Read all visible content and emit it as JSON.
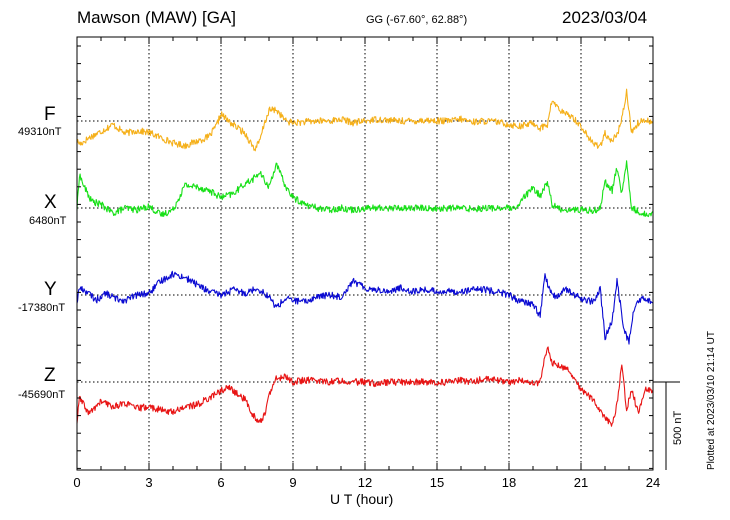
{
  "header": {
    "station": "Mawson (MAW)  [GA]",
    "coord": "GG (-67.60°,  62.88°)",
    "date": "2023/03/04"
  },
  "footer": {
    "plotted": "Plotted at 2023/03/10 21:14 UT",
    "scale_label": "500 nT"
  },
  "chart_data": {
    "type": "line",
    "xlabel": "U T (hour)",
    "xlim": [
      0,
      24
    ],
    "xticks": [
      "0",
      "3",
      "6",
      "9",
      "12",
      "15",
      "18",
      "21",
      "24"
    ],
    "scale_bar_nT": 500,
    "grid": true,
    "series": [
      {
        "name": "F",
        "baseline_label": "49310nT",
        "color": "#f5b01a",
        "points": [
          [
            0,
            -115
          ],
          [
            0.15,
            -130
          ],
          [
            0.5,
            -95
          ],
          [
            1,
            -60
          ],
          [
            1.5,
            -20
          ],
          [
            2,
            -70
          ],
          [
            2.5,
            -55
          ],
          [
            3,
            -65
          ],
          [
            3.5,
            -95
          ],
          [
            4,
            -125
          ],
          [
            4.5,
            -140
          ],
          [
            5,
            -115
          ],
          [
            5.5,
            -90
          ],
          [
            5.8,
            -30
          ],
          [
            6,
            40
          ],
          [
            6.3,
            0
          ],
          [
            6.6,
            -30
          ],
          [
            7,
            -70
          ],
          [
            7.4,
            -160
          ],
          [
            7.6,
            -120
          ],
          [
            7.8,
            -20
          ],
          [
            8,
            60
          ],
          [
            8.3,
            65
          ],
          [
            8.7,
            0
          ],
          [
            9,
            -10
          ],
          [
            9.5,
            -5
          ],
          [
            10,
            0
          ],
          [
            10.5,
            0
          ],
          [
            11,
            10
          ],
          [
            11.5,
            -10
          ],
          [
            12,
            0
          ],
          [
            12.5,
            10
          ],
          [
            13,
            5
          ],
          [
            13.5,
            0
          ],
          [
            14,
            0
          ],
          [
            14.5,
            5
          ],
          [
            15,
            0
          ],
          [
            15.5,
            0
          ],
          [
            16,
            10
          ],
          [
            16.5,
            -5
          ],
          [
            17,
            0
          ],
          [
            17.5,
            -5
          ],
          [
            18,
            -20
          ],
          [
            18.5,
            -30
          ],
          [
            19,
            -10
          ],
          [
            19.3,
            -40
          ],
          [
            19.6,
            -20
          ],
          [
            19.8,
            120
          ],
          [
            20,
            80
          ],
          [
            20.3,
            40
          ],
          [
            20.6,
            30
          ],
          [
            21,
            -30
          ],
          [
            21.5,
            -130
          ],
          [
            21.8,
            -140
          ],
          [
            22,
            -70
          ],
          [
            22.2,
            -120
          ],
          [
            22.5,
            -80
          ],
          [
            22.7,
            10
          ],
          [
            22.9,
            170
          ],
          [
            23.1,
            -60
          ],
          [
            23.4,
            -10
          ],
          [
            23.7,
            10
          ],
          [
            24,
            -10
          ]
        ]
      },
      {
        "name": "X",
        "baseline_label": "6480nT",
        "color": "#18e018",
        "points": [
          [
            0,
            -5
          ],
          [
            0.1,
            190
          ],
          [
            0.3,
            120
          ],
          [
            0.6,
            40
          ],
          [
            1,
            20
          ],
          [
            1.5,
            -30
          ],
          [
            2,
            0
          ],
          [
            2.5,
            -10
          ],
          [
            3,
            10
          ],
          [
            3.5,
            -40
          ],
          [
            4,
            -10
          ],
          [
            4.5,
            130
          ],
          [
            5,
            120
          ],
          [
            5.5,
            100
          ],
          [
            6,
            60
          ],
          [
            6.5,
            80
          ],
          [
            7,
            140
          ],
          [
            7.3,
            160
          ],
          [
            7.6,
            200
          ],
          [
            8,
            120
          ],
          [
            8.3,
            250
          ],
          [
            8.7,
            120
          ],
          [
            9,
            60
          ],
          [
            9.5,
            20
          ],
          [
            10,
            0
          ],
          [
            10.5,
            -10
          ],
          [
            11,
            0
          ],
          [
            11.5,
            -10
          ],
          [
            12,
            0
          ],
          [
            12.5,
            0
          ],
          [
            13,
            0
          ],
          [
            13.5,
            0
          ],
          [
            14,
            0
          ],
          [
            14.5,
            0
          ],
          [
            15,
            -5
          ],
          [
            15.5,
            0
          ],
          [
            16,
            0
          ],
          [
            16.5,
            -5
          ],
          [
            17,
            0
          ],
          [
            17.5,
            0
          ],
          [
            18,
            0
          ],
          [
            18.3,
            -10
          ],
          [
            18.6,
            60
          ],
          [
            19,
            110
          ],
          [
            19.3,
            70
          ],
          [
            19.6,
            150
          ],
          [
            19.8,
            20
          ],
          [
            20,
            0
          ],
          [
            20.3,
            -10
          ],
          [
            20.6,
            -10
          ],
          [
            21,
            -10
          ],
          [
            21.5,
            -15
          ],
          [
            21.8,
            0
          ],
          [
            22,
            150
          ],
          [
            22.3,
            100
          ],
          [
            22.5,
            230
          ],
          [
            22.7,
            80
          ],
          [
            22.9,
            260
          ],
          [
            23.1,
            0
          ],
          [
            23.4,
            -20
          ],
          [
            23.7,
            -40
          ],
          [
            24,
            -20
          ]
        ]
      },
      {
        "name": "Y",
        "baseline_label": "-17380nT",
        "color": "#0a0ad2",
        "points": [
          [
            0,
            -40
          ],
          [
            0.1,
            40
          ],
          [
            0.4,
            20
          ],
          [
            0.8,
            -30
          ],
          [
            1.2,
            10
          ],
          [
            1.6,
            -20
          ],
          [
            2,
            -30
          ],
          [
            2.5,
            0
          ],
          [
            3,
            10
          ],
          [
            3.5,
            80
          ],
          [
            4,
            120
          ],
          [
            4.5,
            100
          ],
          [
            5,
            60
          ],
          [
            5.5,
            20
          ],
          [
            6,
            0
          ],
          [
            6.5,
            30
          ],
          [
            7,
            10
          ],
          [
            7.5,
            40
          ],
          [
            8,
            -10
          ],
          [
            8.3,
            -70
          ],
          [
            8.7,
            -20
          ],
          [
            9,
            -30
          ],
          [
            9.5,
            -40
          ],
          [
            10,
            -10
          ],
          [
            10.5,
            0
          ],
          [
            11,
            -10
          ],
          [
            11.5,
            80
          ],
          [
            12,
            40
          ],
          [
            12.5,
            30
          ],
          [
            13,
            20
          ],
          [
            13.5,
            40
          ],
          [
            14,
            20
          ],
          [
            14.5,
            30
          ],
          [
            15,
            20
          ],
          [
            15.5,
            20
          ],
          [
            16,
            20
          ],
          [
            16.5,
            30
          ],
          [
            17,
            30
          ],
          [
            17.5,
            20
          ],
          [
            18,
            0
          ],
          [
            18.5,
            -40
          ],
          [
            19,
            -50
          ],
          [
            19.3,
            -120
          ],
          [
            19.5,
            120
          ],
          [
            19.7,
            20
          ],
          [
            20,
            -20
          ],
          [
            20.3,
            40
          ],
          [
            20.6,
            10
          ],
          [
            21,
            -20
          ],
          [
            21.5,
            -40
          ],
          [
            21.8,
            30
          ],
          [
            22,
            -240
          ],
          [
            22.3,
            -150
          ],
          [
            22.5,
            80
          ],
          [
            22.8,
            -200
          ],
          [
            23,
            -270
          ],
          [
            23.2,
            -80
          ],
          [
            23.5,
            -20
          ],
          [
            24,
            -40
          ]
        ]
      },
      {
        "name": "Z",
        "baseline_label": "-45690nT",
        "color": "#e81414",
        "points": [
          [
            0,
            -230
          ],
          [
            0.1,
            -90
          ],
          [
            0.5,
            -180
          ],
          [
            1,
            -110
          ],
          [
            1.5,
            -140
          ],
          [
            2,
            -120
          ],
          [
            2.5,
            -150
          ],
          [
            3,
            -140
          ],
          [
            3.5,
            -160
          ],
          [
            4,
            -170
          ],
          [
            4.5,
            -140
          ],
          [
            5,
            -130
          ],
          [
            5.5,
            -90
          ],
          [
            6,
            -50
          ],
          [
            6.3,
            -30
          ],
          [
            6.6,
            -60
          ],
          [
            7,
            -100
          ],
          [
            7.3,
            -180
          ],
          [
            7.6,
            -230
          ],
          [
            7.8,
            -190
          ],
          [
            8,
            -80
          ],
          [
            8.3,
            20
          ],
          [
            8.7,
            30
          ],
          [
            9,
            0
          ],
          [
            9.5,
            10
          ],
          [
            10,
            10
          ],
          [
            10.5,
            0
          ],
          [
            11,
            10
          ],
          [
            11.5,
            0
          ],
          [
            12,
            0
          ],
          [
            12.5,
            -10
          ],
          [
            13,
            0
          ],
          [
            13.5,
            0
          ],
          [
            14,
            0
          ],
          [
            14.5,
            0
          ],
          [
            15,
            -5
          ],
          [
            15.5,
            0
          ],
          [
            16,
            10
          ],
          [
            16.5,
            0
          ],
          [
            17,
            20
          ],
          [
            17.5,
            10
          ],
          [
            18,
            0
          ],
          [
            18.5,
            10
          ],
          [
            19,
            -10
          ],
          [
            19.3,
            0
          ],
          [
            19.6,
            210
          ],
          [
            19.8,
            110
          ],
          [
            20,
            100
          ],
          [
            20.5,
            70
          ],
          [
            21,
            -40
          ],
          [
            21.5,
            -100
          ],
          [
            21.8,
            -160
          ],
          [
            22,
            -200
          ],
          [
            22.3,
            -250
          ],
          [
            22.5,
            -130
          ],
          [
            22.7,
            100
          ],
          [
            22.9,
            -160
          ],
          [
            23.1,
            -40
          ],
          [
            23.4,
            -180
          ],
          [
            23.7,
            -30
          ],
          [
            24,
            -60
          ]
        ]
      }
    ]
  }
}
